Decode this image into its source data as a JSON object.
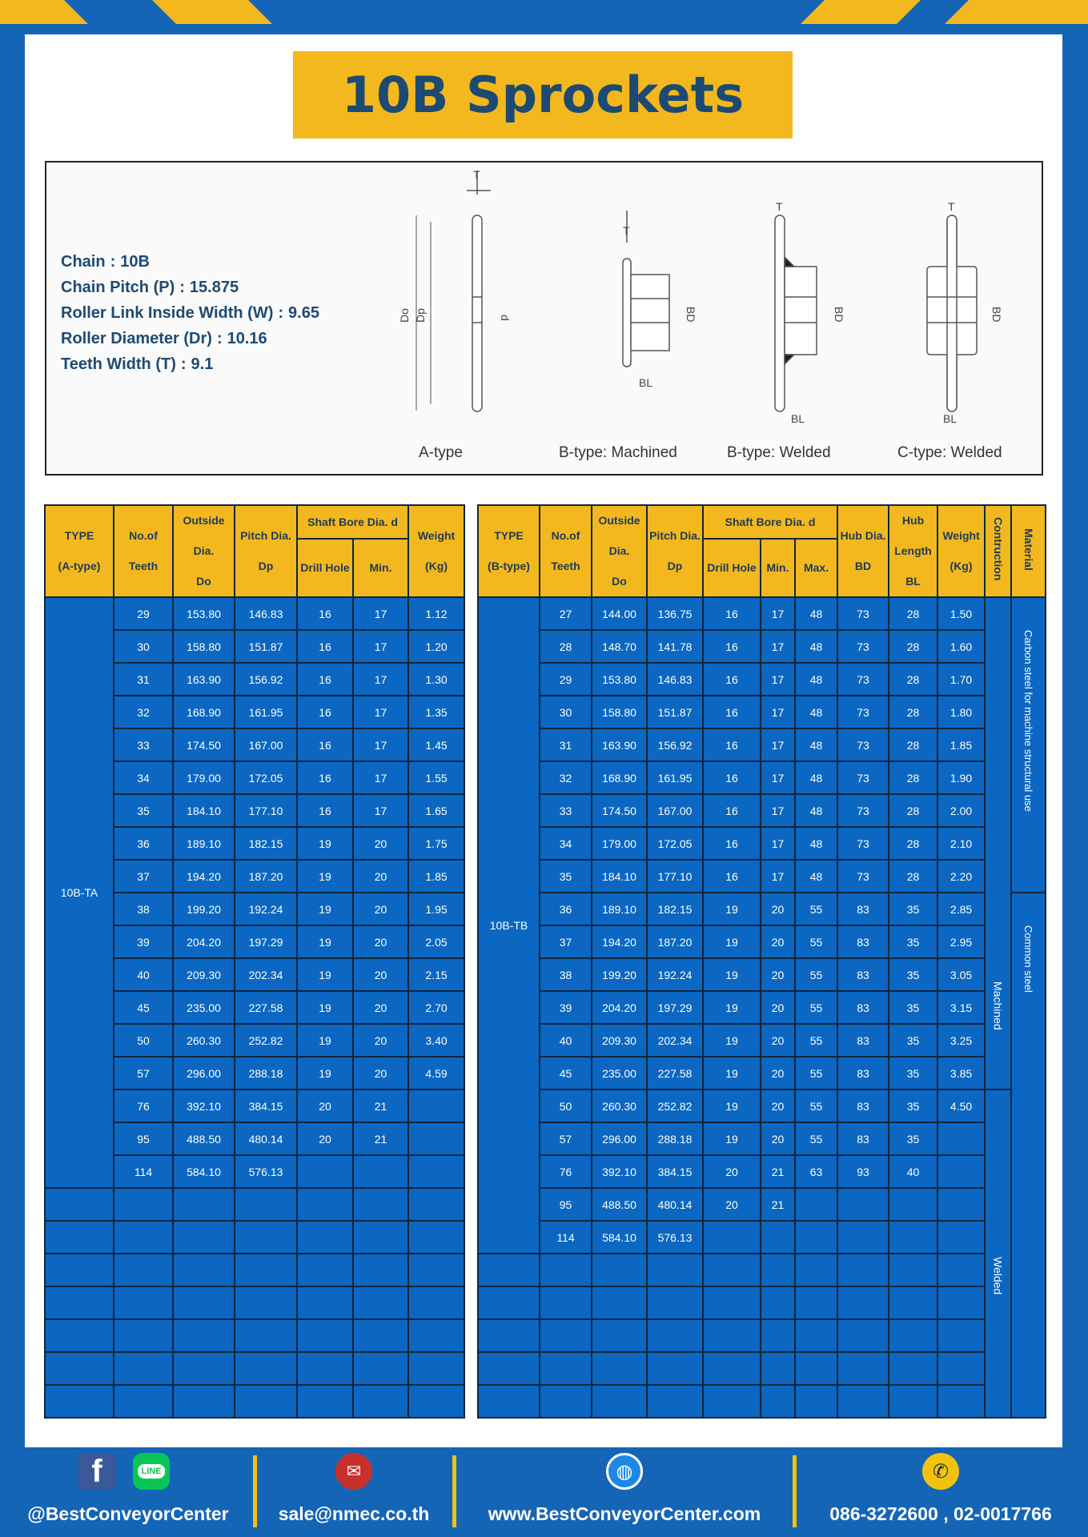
{
  "title": "10B Sprockets",
  "specs": [
    {
      "label": "Chain",
      "value": "10B"
    },
    {
      "label": "Chain Pitch (P)",
      "value": "15.875"
    },
    {
      "label": "Roller Link Inside Width (W)",
      "value": "9.65"
    },
    {
      "label": "Roller Diameter (Dr)",
      "value": "10.16"
    },
    {
      "label": "Teeth Width (T)",
      "value": "9.1"
    }
  ],
  "diagram": {
    "captions": [
      "A-type",
      "B-type: Machined",
      "B-type: Welded",
      "C-type: Welded"
    ],
    "dim_labels": {
      "T": "T",
      "Do": "Do",
      "Dp": "Dp",
      "d": "d",
      "BD": "BD",
      "BL": "BL"
    }
  },
  "colors": {
    "brand_blue": "#1565b7",
    "cell_blue": "#0b67c2",
    "header_yellow": "#f3b81d",
    "title_text": "#1d4a73"
  },
  "table_a": {
    "headers": {
      "type": "TYPE",
      "type_sub": "(A-type)",
      "teeth": "No.of",
      "teeth_sub": "Teeth",
      "do": "Outside",
      "do_sub": "Dia.",
      "do_sub2": "Do",
      "dp": "Pitch Dia.",
      "dp_sub": "Dp",
      "bore": "Shaft Bore Dia. d",
      "drill": "Drill Hole",
      "min": "Min.",
      "weight": "Weight",
      "weight_sub": "(Kg)"
    },
    "type_label": "10B-TA",
    "rows": [
      [
        "29",
        "153.80",
        "146.83",
        "16",
        "17",
        "1.12"
      ],
      [
        "30",
        "158.80",
        "151.87",
        "16",
        "17",
        "1.20"
      ],
      [
        "31",
        "163.90",
        "156.92",
        "16",
        "17",
        "1.30"
      ],
      [
        "32",
        "168.90",
        "161.95",
        "16",
        "17",
        "1.35"
      ],
      [
        "33",
        "174.50",
        "167.00",
        "16",
        "17",
        "1.45"
      ],
      [
        "34",
        "179.00",
        "172.05",
        "16",
        "17",
        "1.55"
      ],
      [
        "35",
        "184.10",
        "177.10",
        "16",
        "17",
        "1.65"
      ],
      [
        "36",
        "189.10",
        "182.15",
        "19",
        "20",
        "1.75"
      ],
      [
        "37",
        "194.20",
        "187.20",
        "19",
        "20",
        "1.85"
      ],
      [
        "38",
        "199.20",
        "192.24",
        "19",
        "20",
        "1.95"
      ],
      [
        "39",
        "204.20",
        "197.29",
        "19",
        "20",
        "2.05"
      ],
      [
        "40",
        "209.30",
        "202.34",
        "19",
        "20",
        "2.15"
      ],
      [
        "45",
        "235.00",
        "227.58",
        "19",
        "20",
        "2.70"
      ],
      [
        "50",
        "260.30",
        "252.82",
        "19",
        "20",
        "3.40"
      ],
      [
        "57",
        "296.00",
        "288.18",
        "19",
        "20",
        "4.59"
      ],
      [
        "76",
        "392.10",
        "384.15",
        "20",
        "21",
        ""
      ],
      [
        "95",
        "488.50",
        "480.14",
        "20",
        "21",
        ""
      ],
      [
        "114",
        "584.10",
        "576.13",
        "",
        "",
        ""
      ]
    ]
  },
  "table_b": {
    "headers": {
      "type": "TYPE",
      "type_sub": "(B-type)",
      "teeth": "No.of",
      "teeth_sub": "Teeth",
      "do": "Outside",
      "do_sub": "Dia.",
      "do_sub2": "Do",
      "dp": "Pitch Dia.",
      "dp_sub": "Dp",
      "bore": "Shaft Bore Dia. d",
      "drill": "Drill Hole",
      "min": "Min.",
      "max": "Max.",
      "bd": "Hub Dia.",
      "bd_sub": "BD",
      "bl": "Hub",
      "bl_sub": "Length",
      "bl_sub2": "BL",
      "weight": "Weight",
      "weight_sub": "(Kg)",
      "construction": "Contruction",
      "material": "Material"
    },
    "type_label": "10B-TB",
    "construction": [
      "Machined",
      "Welded"
    ],
    "material": [
      "Carbon steel for machine structural use",
      "Common steel"
    ],
    "rows": [
      [
        "27",
        "144.00",
        "136.75",
        "16",
        "17",
        "48",
        "73",
        "28",
        "1.50"
      ],
      [
        "28",
        "148.70",
        "141.78",
        "16",
        "17",
        "48",
        "73",
        "28",
        "1.60"
      ],
      [
        "29",
        "153.80",
        "146.83",
        "16",
        "17",
        "48",
        "73",
        "28",
        "1.70"
      ],
      [
        "30",
        "158.80",
        "151.87",
        "16",
        "17",
        "48",
        "73",
        "28",
        "1.80"
      ],
      [
        "31",
        "163.90",
        "156.92",
        "16",
        "17",
        "48",
        "73",
        "28",
        "1.85"
      ],
      [
        "32",
        "168.90",
        "161.95",
        "16",
        "17",
        "48",
        "73",
        "28",
        "1.90"
      ],
      [
        "33",
        "174.50",
        "167.00",
        "16",
        "17",
        "48",
        "73",
        "28",
        "2.00"
      ],
      [
        "34",
        "179.00",
        "172.05",
        "16",
        "17",
        "48",
        "73",
        "28",
        "2.10"
      ],
      [
        "35",
        "184.10",
        "177.10",
        "16",
        "17",
        "48",
        "73",
        "28",
        "2.20"
      ],
      [
        "36",
        "189.10",
        "182.15",
        "19",
        "20",
        "55",
        "83",
        "35",
        "2.85"
      ],
      [
        "37",
        "194.20",
        "187.20",
        "19",
        "20",
        "55",
        "83",
        "35",
        "2.95"
      ],
      [
        "38",
        "199.20",
        "192.24",
        "19",
        "20",
        "55",
        "83",
        "35",
        "3.05"
      ],
      [
        "39",
        "204.20",
        "197.29",
        "19",
        "20",
        "55",
        "83",
        "35",
        "3.15"
      ],
      [
        "40",
        "209.30",
        "202.34",
        "19",
        "20",
        "55",
        "83",
        "35",
        "3.25"
      ],
      [
        "45",
        "235.00",
        "227.58",
        "19",
        "20",
        "55",
        "83",
        "35",
        "3.85"
      ],
      [
        "50",
        "260.30",
        "252.82",
        "19",
        "20",
        "55",
        "83",
        "35",
        "4.50"
      ],
      [
        "57",
        "296.00",
        "288.18",
        "19",
        "20",
        "55",
        "83",
        "35",
        ""
      ],
      [
        "76",
        "392.10",
        "384.15",
        "20",
        "21",
        "63",
        "93",
        "40",
        ""
      ],
      [
        "95",
        "488.50",
        "480.14",
        "20",
        "21",
        "",
        "",
        "",
        ""
      ],
      [
        "114",
        "584.10",
        "576.13",
        "",
        "",
        "",
        "",
        "",
        ""
      ]
    ]
  },
  "footer": {
    "social": "@BestConveyorCenter",
    "line_label": "LINE",
    "email": "sale@nmec.co.th",
    "website": "www.BestConveyorCenter.com",
    "phone": "086-3272600 , 02-0017766"
  }
}
